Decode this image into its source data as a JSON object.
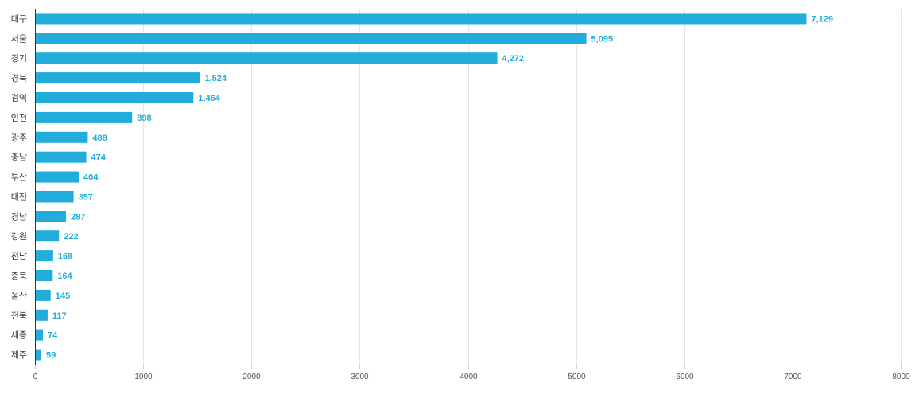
{
  "chart_data": {
    "type": "bar",
    "orientation": "horizontal",
    "title": "",
    "xlabel": "",
    "ylabel": "",
    "categories": [
      "대구",
      "서울",
      "경기",
      "경북",
      "검역",
      "인천",
      "광주",
      "충남",
      "부산",
      "대전",
      "경남",
      "강원",
      "전남",
      "충북",
      "울산",
      "전북",
      "세종",
      "제주"
    ],
    "values": [
      7129,
      5095,
      4272,
      1524,
      1464,
      898,
      488,
      474,
      404,
      357,
      287,
      222,
      168,
      164,
      145,
      117,
      74,
      59
    ],
    "value_labels": [
      "7,129",
      "5,095",
      "4,272",
      "1,524",
      "1,464",
      "898",
      "488",
      "474",
      "404",
      "357",
      "287",
      "222",
      "168",
      "164",
      "145",
      "117",
      "74",
      "59"
    ],
    "xlim": [
      0,
      8000
    ],
    "xticks": [
      0,
      1000,
      2000,
      3000,
      4000,
      5000,
      6000,
      7000,
      8000
    ],
    "xtick_labels": [
      "0",
      "1000",
      "2000",
      "3000",
      "4000",
      "5000",
      "6000",
      "7000",
      "8000"
    ],
    "grid": "vertical",
    "legend": "none",
    "colors": {
      "bar": "#22acdc",
      "value_label": "#22acdc",
      "grid": "#e6e6e6",
      "axis": "#333333"
    }
  }
}
